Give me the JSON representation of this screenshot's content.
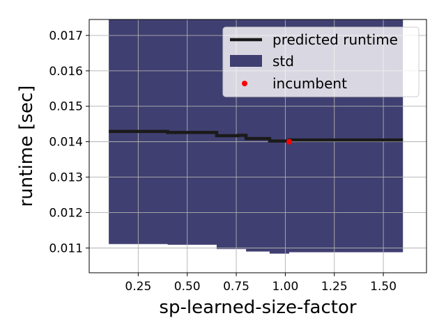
{
  "chart_data": {
    "type": "line",
    "xlabel": "sp-learned-size-factor",
    "ylabel": "runtime [sec]",
    "xlim": [
      0.0,
      1.72
    ],
    "ylim": [
      0.0103,
      0.01745
    ],
    "xticks": [
      "0.25",
      "0.50",
      "0.75",
      "1.00",
      "1.25",
      "1.50"
    ],
    "xtick_values": [
      0.25,
      0.5,
      0.75,
      1.0,
      1.25,
      1.5
    ],
    "yticks": [
      "0.011",
      "0.012",
      "0.013",
      "0.014",
      "0.015",
      "0.016",
      "0.017"
    ],
    "ytick_values": [
      0.011,
      0.012,
      0.013,
      0.014,
      0.015,
      0.016,
      0.017
    ],
    "grid": true,
    "legend_position": "top-right",
    "series": [
      {
        "name": "predicted runtime",
        "kind": "step-line",
        "color": "#1a1a1a",
        "x": [
          0.1,
          0.4,
          0.4,
          0.65,
          0.65,
          0.76,
          0.76,
          0.8,
          0.8,
          0.92,
          0.92,
          1.02,
          1.02,
          1.6
        ],
        "y": [
          0.01429,
          0.01429,
          0.01426,
          0.01426,
          0.01417,
          0.01417,
          0.01418,
          0.01418,
          0.01409,
          0.01409,
          0.01402,
          0.01402,
          0.01405,
          0.01405
        ]
      },
      {
        "name": "std",
        "kind": "band",
        "color": "#403f71",
        "x": [
          0.1,
          0.4,
          0.4,
          0.65,
          0.65,
          0.8,
          0.8,
          0.92,
          0.92,
          1.02,
          1.02,
          1.6
        ],
        "upper": [
          0.0175,
          0.0175,
          0.0175,
          0.0175,
          0.0175,
          0.0175,
          0.0175,
          0.0175,
          0.0175,
          0.0175,
          0.0175,
          0.0175
        ],
        "lower": [
          0.01111,
          0.01111,
          0.01109,
          0.01109,
          0.01097,
          0.01097,
          0.0109,
          0.0109,
          0.01084,
          0.01084,
          0.01088,
          0.01088
        ]
      },
      {
        "name": "incumbent",
        "kind": "point",
        "color": "#ff0000",
        "x": [
          1.02
        ],
        "y": [
          0.014
        ]
      }
    ]
  }
}
